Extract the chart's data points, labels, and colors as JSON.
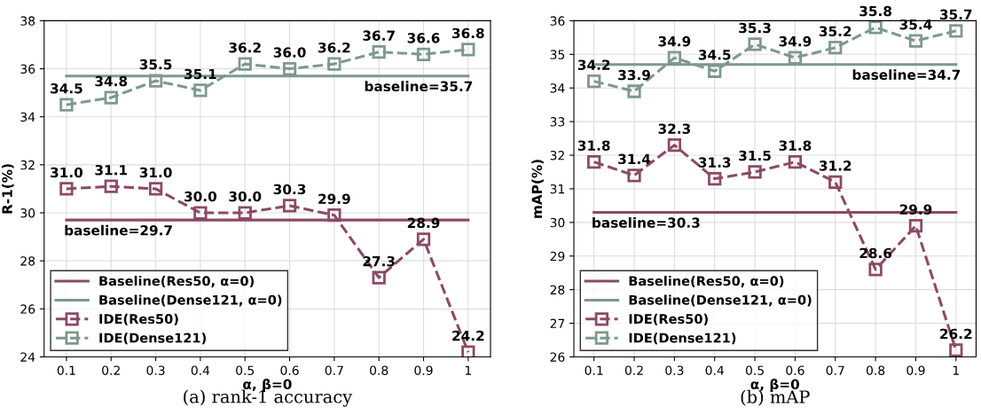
{
  "chart_data": [
    {
      "type": "line",
      "ylabel": "R-1(%)",
      "xlabel": "α, β=0",
      "categories": [
        "0.1",
        "0.2",
        "0.3",
        "0.4",
        "0.5",
        "0.6",
        "0.7",
        "0.8",
        "0.9",
        "1"
      ],
      "ylim": [
        24,
        38
      ],
      "yticks": [
        24,
        26,
        28,
        30,
        32,
        34,
        36,
        38
      ],
      "grid": true,
      "legend": "bottom left",
      "series": [
        {
          "name": "Baseline(Res50, α=0)",
          "color": "#8c4a65",
          "marker": "none",
          "line_style": "solid",
          "values": [
            29.7,
            29.7,
            29.7,
            29.7,
            29.7,
            29.7,
            29.7,
            29.7,
            29.7,
            29.7
          ]
        },
        {
          "name": "Baseline(Dense121, α=0)",
          "color": "#7d998c",
          "marker": "none",
          "line_style": "solid",
          "values": [
            35.7,
            35.7,
            35.7,
            35.7,
            35.7,
            35.7,
            35.7,
            35.7,
            35.7,
            35.7
          ]
        },
        {
          "name": "IDE(Res50)",
          "color": "#8c4a65",
          "marker": "square",
          "line_style": "dashed",
          "values": [
            31.0,
            31.1,
            31.0,
            30.0,
            30.0,
            30.3,
            29.9,
            27.3,
            28.9,
            24.2
          ],
          "value_labels": [
            "31.0",
            "31.1",
            "31.0",
            "30.0",
            "30.0",
            "30.3",
            "29.9",
            "27.3",
            "28.9",
            "24.2"
          ]
        },
        {
          "name": "IDE(Dense121)",
          "color": "#7d998c",
          "marker": "square",
          "line_style": "dashed",
          "values": [
            34.5,
            34.8,
            35.5,
            35.1,
            36.2,
            36.0,
            36.2,
            36.7,
            36.6,
            36.8
          ],
          "value_labels": [
            "34.5",
            "34.8",
            "35.5",
            "35.1",
            "36.2",
            "36.0",
            "36.2",
            "36.7",
            "36.6",
            "36.8"
          ]
        }
      ],
      "annotations": [
        {
          "text": "baseline=35.7",
          "x": "1",
          "y": 35.7
        },
        {
          "text": "baseline=29.7",
          "x": "0.1",
          "y": 29.7
        },
        "(a) rank-1 accuracy"
      ]
    },
    {
      "type": "line",
      "ylabel": "mAP(%)",
      "xlabel": "α, β=0",
      "categories": [
        "0.1",
        "0.2",
        "0.3",
        "0.4",
        "0.5",
        "0.6",
        "0.7",
        "0.8",
        "0.9",
        "1"
      ],
      "ylim": [
        26,
        36
      ],
      "yticks": [
        26,
        27,
        28,
        29,
        30,
        31,
        32,
        33,
        34,
        35,
        36
      ],
      "grid": true,
      "legend": "bottom left",
      "series": [
        {
          "name": "Baseline(Res50, α=0)",
          "color": "#8c4a65",
          "marker": "none",
          "line_style": "solid",
          "values": [
            30.3,
            30.3,
            30.3,
            30.3,
            30.3,
            30.3,
            30.3,
            30.3,
            30.3,
            30.3
          ]
        },
        {
          "name": "Baseline(Dense121, α=0)",
          "color": "#7d998c",
          "marker": "none",
          "line_style": "solid",
          "values": [
            34.7,
            34.7,
            34.7,
            34.7,
            34.7,
            34.7,
            34.7,
            34.7,
            34.7,
            34.7
          ]
        },
        {
          "name": "IDE(Res50)",
          "color": "#8c4a65",
          "marker": "square",
          "line_style": "dashed",
          "values": [
            31.8,
            31.4,
            32.3,
            31.3,
            31.5,
            31.8,
            31.2,
            28.6,
            29.9,
            26.2
          ],
          "value_labels": [
            "31.8",
            "31.4",
            "32.3",
            "31.3",
            "31.5",
            "31.8",
            "31.2",
            "28.6",
            "29.9",
            "26.2"
          ]
        },
        {
          "name": "IDE(Dense121)",
          "color": "#7d998c",
          "marker": "square",
          "line_style": "dashed",
          "values": [
            34.2,
            33.9,
            34.9,
            34.5,
            35.3,
            34.9,
            35.2,
            35.8,
            35.4,
            35.7
          ],
          "value_labels": [
            "34.2",
            "33.9",
            "34.9",
            "34.5",
            "35.3",
            "34.9",
            "35.2",
            "35.8",
            "35.4",
            "35.7"
          ]
        }
      ],
      "annotations": [
        {
          "text": "baseline=34.7",
          "x": "1",
          "y": 34.7
        },
        {
          "text": "baseline=30.3",
          "x": "0.1",
          "y": 30.3
        },
        "(b) mAP"
      ]
    }
  ]
}
